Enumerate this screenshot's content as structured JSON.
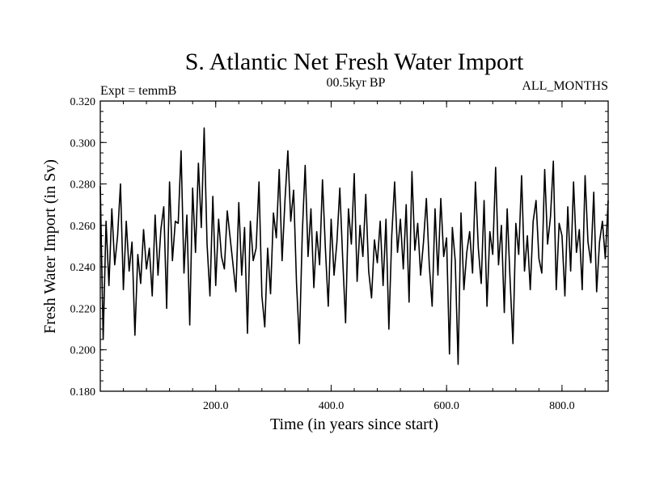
{
  "colors": {
    "background": "#ffffff",
    "line": "#000000"
  },
  "header": {
    "expt": "Expt = temmB",
    "period": "00.5kyr BP",
    "months": "ALL_MONTHS"
  },
  "chart_data": {
    "type": "line",
    "title": "S. Atlantic Net Fresh Water Import",
    "xlabel": "Time (in years since start)",
    "ylabel": "Fresh Water Import (in Sv)",
    "xlim": [
      0,
      880
    ],
    "ylim": [
      0.18,
      0.32
    ],
    "xticks": [
      200,
      400,
      600,
      800
    ],
    "xtick_labels": [
      "200.0",
      "400.0",
      "600.0",
      "800.0"
    ],
    "yticks": [
      0.18,
      0.2,
      0.22,
      0.24,
      0.26,
      0.28,
      0.3,
      0.32
    ],
    "ytick_labels": [
      "0.180",
      "0.200",
      "0.220",
      "0.240",
      "0.260",
      "0.280",
      "0.300",
      "0.320"
    ],
    "series": [
      {
        "name": "Net fresh water import",
        "x": [
          0,
          5,
          10,
          15,
          20,
          25,
          30,
          35,
          40,
          45,
          50,
          55,
          60,
          65,
          70,
          75,
          80,
          85,
          90,
          95,
          100,
          105,
          110,
          115,
          120,
          125,
          130,
          135,
          140,
          145,
          150,
          155,
          160,
          165,
          170,
          175,
          180,
          185,
          190,
          195,
          200,
          205,
          210,
          215,
          220,
          225,
          230,
          235,
          240,
          245,
          250,
          255,
          260,
          265,
          270,
          275,
          280,
          285,
          290,
          295,
          300,
          305,
          310,
          315,
          320,
          325,
          330,
          335,
          340,
          345,
          350,
          355,
          360,
          365,
          370,
          375,
          380,
          385,
          390,
          395,
          400,
          405,
          410,
          415,
          420,
          425,
          430,
          435,
          440,
          445,
          450,
          455,
          460,
          465,
          470,
          475,
          480,
          485,
          490,
          495,
          500,
          505,
          510,
          515,
          520,
          525,
          530,
          535,
          540,
          545,
          550,
          555,
          560,
          565,
          570,
          575,
          580,
          585,
          590,
          595,
          600,
          605,
          610,
          615,
          620,
          625,
          630,
          635,
          640,
          645,
          650,
          655,
          660,
          665,
          670,
          675,
          680,
          685,
          690,
          695,
          700,
          705,
          710,
          715,
          720,
          725,
          730,
          735,
          740,
          745,
          750,
          755,
          760,
          765,
          770,
          775,
          780,
          785,
          790,
          795,
          800,
          805,
          810,
          815,
          820,
          825,
          830,
          835,
          840,
          845,
          850,
          855,
          860,
          865,
          870,
          875,
          880
        ],
        "values": [
          0.279,
          0.205,
          0.262,
          0.231,
          0.268,
          0.241,
          0.255,
          0.28,
          0.229,
          0.262,
          0.238,
          0.252,
          0.207,
          0.246,
          0.232,
          0.258,
          0.239,
          0.249,
          0.226,
          0.265,
          0.236,
          0.258,
          0.269,
          0.22,
          0.281,
          0.243,
          0.262,
          0.261,
          0.296,
          0.237,
          0.265,
          0.212,
          0.278,
          0.247,
          0.29,
          0.259,
          0.307,
          0.251,
          0.226,
          0.274,
          0.231,
          0.263,
          0.245,
          0.239,
          0.267,
          0.254,
          0.241,
          0.228,
          0.271,
          0.236,
          0.259,
          0.208,
          0.262,
          0.243,
          0.249,
          0.281,
          0.226,
          0.211,
          0.249,
          0.227,
          0.266,
          0.254,
          0.287,
          0.243,
          0.272,
          0.296,
          0.262,
          0.277,
          0.232,
          0.203,
          0.256,
          0.289,
          0.245,
          0.268,
          0.23,
          0.257,
          0.241,
          0.282,
          0.249,
          0.221,
          0.263,
          0.236,
          0.252,
          0.278,
          0.244,
          0.213,
          0.268,
          0.251,
          0.285,
          0.233,
          0.26,
          0.245,
          0.275,
          0.238,
          0.225,
          0.253,
          0.242,
          0.262,
          0.231,
          0.263,
          0.21,
          0.255,
          0.281,
          0.247,
          0.263,
          0.239,
          0.27,
          0.223,
          0.286,
          0.248,
          0.261,
          0.236,
          0.252,
          0.273,
          0.241,
          0.221,
          0.268,
          0.236,
          0.273,
          0.245,
          0.254,
          0.198,
          0.259,
          0.243,
          0.193,
          0.266,
          0.229,
          0.247,
          0.257,
          0.237,
          0.281,
          0.249,
          0.232,
          0.272,
          0.221,
          0.257,
          0.246,
          0.288,
          0.241,
          0.26,
          0.218,
          0.268,
          0.234,
          0.203,
          0.261,
          0.246,
          0.284,
          0.238,
          0.255,
          0.229,
          0.262,
          0.272,
          0.244,
          0.237,
          0.287,
          0.251,
          0.264,
          0.291,
          0.229,
          0.261,
          0.255,
          0.226,
          0.269,
          0.238,
          0.281,
          0.247,
          0.258,
          0.229,
          0.284,
          0.252,
          0.242,
          0.276,
          0.228,
          0.252,
          0.262,
          0.244,
          0.272
        ]
      }
    ]
  }
}
